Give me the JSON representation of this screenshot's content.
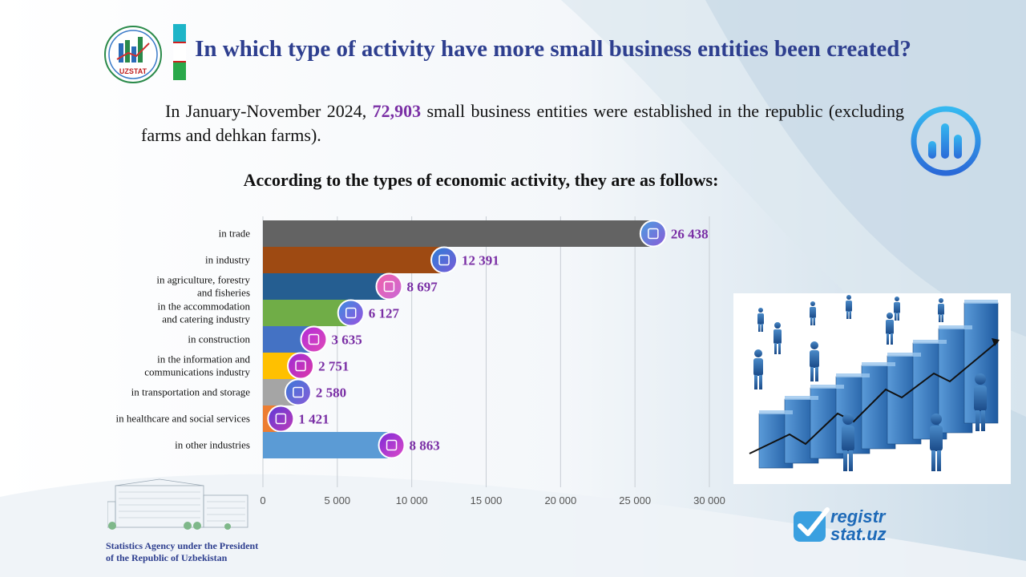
{
  "header": {
    "logo_text": "UZSTAT",
    "title": "In which type of activity have more small business entities been created?"
  },
  "intro": {
    "before": "In January-November 2024, ",
    "highlight": "72,903",
    "after": " small business entities were established in the republic (excluding farms and dehkan farms)."
  },
  "subtitle": "According to the types of economic activity, they are as follows:",
  "chart_data": {
    "type": "bar",
    "orientation": "horizontal",
    "categories": [
      "in trade",
      "in industry",
      "in agriculture, forestry\nand fisheries",
      "in the accommodation\nand catering industry",
      "in construction",
      "in the information  and\ncommunications industry",
      "in transportation and storage",
      "in healthcare and social services",
      "in other industries"
    ],
    "values": [
      26438,
      12391,
      8697,
      6127,
      3635,
      2751,
      2580,
      1421,
      8863
    ],
    "value_labels": [
      "26 438",
      "12 391",
      "8 697",
      "6 127",
      "3 635",
      "2 751",
      "2 580",
      "1 421",
      "8 863"
    ],
    "bar_colors": [
      "#636363",
      "#9e4a12",
      "#255e91",
      "#70ad47",
      "#4472c4",
      "#ffc000",
      "#a5a5a5",
      "#ed7d31",
      "#5b9bd5"
    ],
    "icon_colors": [
      [
        "#4a9fe0",
        "#8a5ad8"
      ],
      [
        "#2c7fd6",
        "#7a5ad8"
      ],
      [
        "#f25fa8",
        "#c86ad8"
      ],
      [
        "#3a8ee0",
        "#9a50e0"
      ],
      [
        "#b02ad8",
        "#e04ab8"
      ],
      [
        "#9a2ad8",
        "#e03aa8"
      ],
      [
        "#3a7ad8",
        "#8a5ad8"
      ],
      [
        "#5a3ad8",
        "#c03ab8"
      ],
      [
        "#7a2ad8",
        "#e04ac8"
      ]
    ],
    "icons": [
      "store-icon",
      "factory-icon",
      "farm-icon",
      "catering-icon",
      "construction-icon",
      "network-icon",
      "truck-icon",
      "healthcare-icon",
      "more-icon"
    ],
    "xticks": [
      0,
      5000,
      10000,
      15000,
      20000,
      25000,
      30000
    ],
    "xtick_labels": [
      "0",
      "5 000",
      "10 000",
      "15 000",
      "20 000",
      "25 000",
      "30 000"
    ],
    "xlim": [
      0,
      30000
    ],
    "grid": true,
    "label_color": "#7a2fa5"
  },
  "footer": {
    "agency": "Statistics Agency under the President\nof the Republic  of Uzbekistan",
    "site_line1": "registr",
    "site_line2": "stat.uz"
  }
}
